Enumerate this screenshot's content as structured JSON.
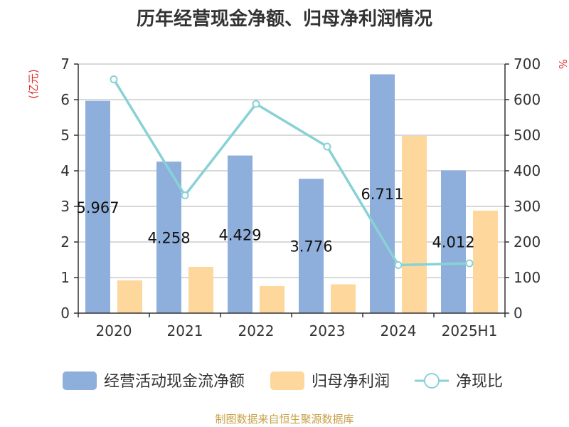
{
  "chart_data": {
    "type": "bar",
    "title": "历年经营现金净额、归母净利润情况",
    "categories": [
      "2020",
      "2021",
      "2022",
      "2023",
      "2024",
      "2025H1"
    ],
    "left_axis": {
      "unit": "(亿元)",
      "ylim": [
        0,
        7
      ],
      "ticks": [
        0,
        1,
        2,
        3,
        4,
        5,
        6,
        7
      ]
    },
    "right_axis": {
      "unit": "%",
      "ylim": [
        0,
        700
      ],
      "ticks": [
        0,
        100,
        200,
        300,
        400,
        500,
        600,
        700
      ]
    },
    "grid": true,
    "legend_position": "bottom",
    "series": [
      {
        "name": "经营活动现金流净额",
        "type": "bar",
        "axis": "left",
        "color": "#8eaedb",
        "values": [
          5.967,
          4.258,
          4.429,
          3.776,
          6.711,
          4.012
        ],
        "labels": [
          "5.967",
          "4.258",
          "4.429",
          "3.776",
          "6.711",
          "4.012"
        ]
      },
      {
        "name": "归母净利润",
        "type": "bar",
        "axis": "left",
        "color": "#fdd79b",
        "values": [
          0.92,
          1.3,
          0.76,
          0.81,
          4.98,
          2.88
        ]
      },
      {
        "name": "净现比",
        "type": "line",
        "axis": "right",
        "color": "#88d2d6",
        "values": [
          657,
          331,
          588,
          468,
          135,
          140
        ]
      }
    ]
  },
  "footer": {
    "source": "制图数据来自恒生聚源数据库"
  }
}
